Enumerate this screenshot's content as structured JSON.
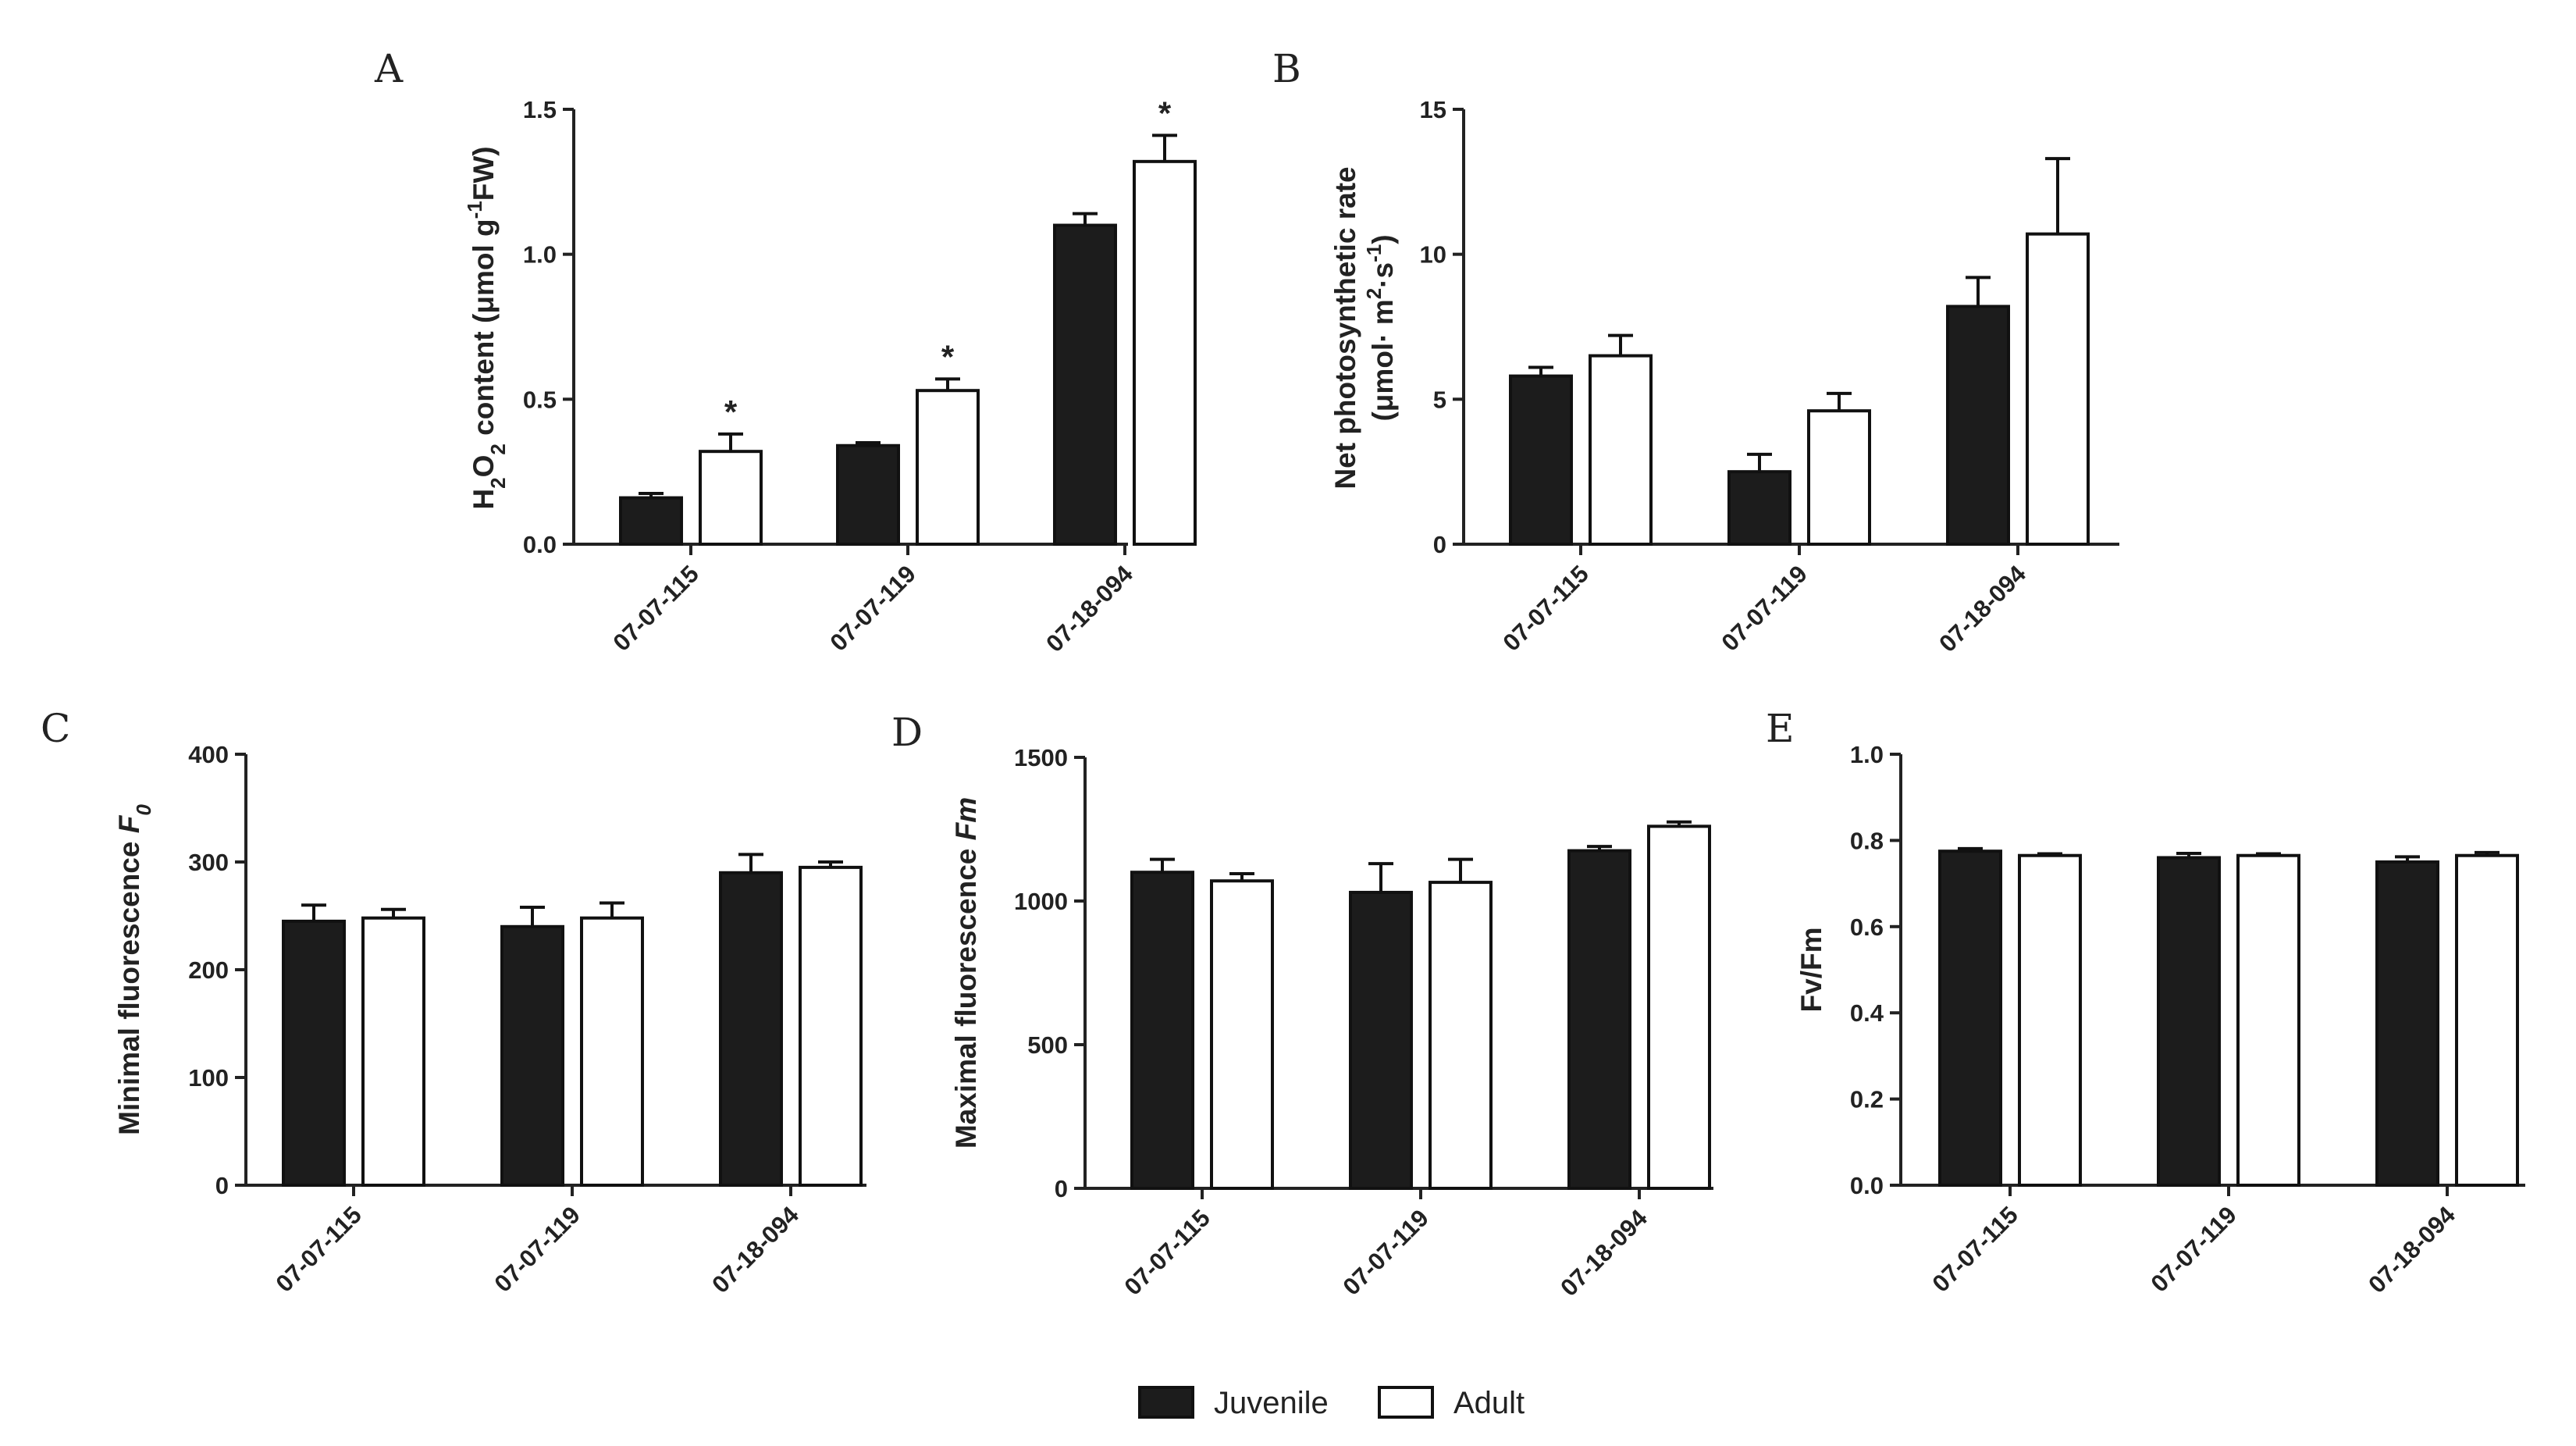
{
  "legend": [
    {
      "name": "Juvenile",
      "color": "#1c1c1c"
    },
    {
      "name": "Adult",
      "color": "#ffffff"
    }
  ],
  "chart_data": [
    {
      "panel": "A",
      "type": "bar",
      "categories": [
        "07-07-115",
        "07-07-119",
        "07-18-094"
      ],
      "ylabel": "H2O2 content (μmol g-1FW)",
      "ylim": [
        0,
        1.5
      ],
      "yticks": [
        "0.0",
        "0.5",
        "1.0",
        "1.5"
      ],
      "series": [
        {
          "name": "Juvenile",
          "values": [
            0.16,
            0.34,
            1.1
          ],
          "errors": [
            0.015,
            0.01,
            0.04
          ]
        },
        {
          "name": "Adult",
          "values": [
            0.32,
            0.53,
            1.32
          ],
          "errors": [
            0.06,
            0.04,
            0.09
          ]
        }
      ],
      "annotations": [
        {
          "series": "Adult",
          "category": "07-07-115",
          "text": "*"
        },
        {
          "series": "Adult",
          "category": "07-07-119",
          "text": "*"
        },
        {
          "series": "Adult",
          "category": "07-18-094",
          "text": "*"
        }
      ]
    },
    {
      "panel": "B",
      "type": "bar",
      "categories": [
        "07-07-115",
        "07-07-119",
        "07-18-094"
      ],
      "ylabel": "Net photosynthetic rate (μmol· m2·s-1)",
      "ylim": [
        0,
        15
      ],
      "yticks": [
        "0",
        "5",
        "10",
        "15"
      ],
      "series": [
        {
          "name": "Juvenile",
          "values": [
            5.8,
            2.5,
            8.2
          ],
          "errors": [
            0.3,
            0.6,
            1.0
          ]
        },
        {
          "name": "Adult",
          "values": [
            6.5,
            4.6,
            10.7
          ],
          "errors": [
            0.7,
            0.6,
            2.6
          ]
        }
      ],
      "annotations": []
    },
    {
      "panel": "C",
      "type": "bar",
      "categories": [
        "07-07-115",
        "07-07-119",
        "07-18-094"
      ],
      "ylabel": "Minimal fluorescence F0",
      "ylim": [
        0,
        400
      ],
      "yticks": [
        "0",
        "100",
        "200",
        "300",
        "400"
      ],
      "series": [
        {
          "name": "Juvenile",
          "values": [
            245,
            240,
            290
          ],
          "errors": [
            15,
            18,
            17
          ]
        },
        {
          "name": "Adult",
          "values": [
            248,
            248,
            295
          ],
          "errors": [
            8,
            14,
            5
          ]
        }
      ],
      "annotations": []
    },
    {
      "panel": "D",
      "type": "bar",
      "categories": [
        "07-07-115",
        "07-07-119",
        "07-18-094"
      ],
      "ylabel": "Maximal fluorescence Fm",
      "ylim": [
        0,
        1500
      ],
      "yticks": [
        "0",
        "500",
        "1000",
        "1500"
      ],
      "series": [
        {
          "name": "Juvenile",
          "values": [
            1100,
            1030,
            1175
          ],
          "errors": [
            45,
            100,
            15
          ]
        },
        {
          "name": "Adult",
          "values": [
            1070,
            1065,
            1260
          ],
          "errors": [
            25,
            80,
            15
          ]
        }
      ],
      "annotations": []
    },
    {
      "panel": "E",
      "type": "bar",
      "categories": [
        "07-07-115",
        "07-07-119",
        "07-18-094"
      ],
      "ylabel": "Fv/Fm",
      "ylim": [
        0,
        1.0
      ],
      "yticks": [
        "0.0",
        "0.2",
        "0.4",
        "0.6",
        "0.8",
        "1.0"
      ],
      "series": [
        {
          "name": "Juvenile",
          "values": [
            0.775,
            0.76,
            0.75
          ],
          "errors": [
            0.006,
            0.01,
            0.012
          ]
        },
        {
          "name": "Adult",
          "values": [
            0.765,
            0.765,
            0.765
          ],
          "errors": [
            0.004,
            0.004,
            0.007
          ]
        }
      ],
      "annotations": []
    }
  ]
}
